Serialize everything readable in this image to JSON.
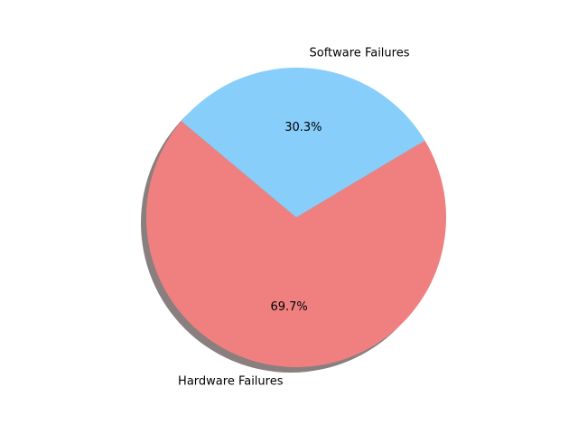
{
  "chart_data": {
    "type": "pie",
    "categories": [
      "Hardware Failures",
      "Software Failures"
    ],
    "values": [
      69.7,
      30.3
    ],
    "labels": [
      "69.7%",
      "30.3%"
    ],
    "colors": [
      "#f08080",
      "#87cefa"
    ],
    "shadow": true,
    "legend": "none"
  }
}
